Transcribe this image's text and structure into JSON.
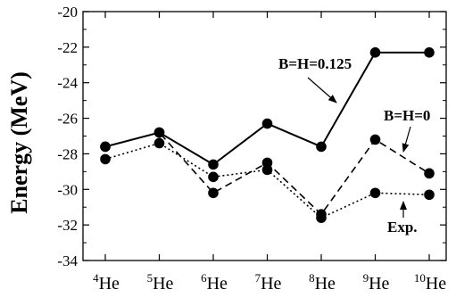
{
  "chart_data": {
    "type": "line",
    "xlabel": "",
    "ylabel": "Energy (MeV)",
    "ylim": [
      -34,
      -20
    ],
    "yticks": [
      "-20",
      "-22",
      "-24",
      "-26",
      "-28",
      "-30",
      "-32",
      "-34"
    ],
    "categories": [
      {
        "mass": "4",
        "symbol": "He"
      },
      {
        "mass": "5",
        "symbol": "He"
      },
      {
        "mass": "6",
        "symbol": "He"
      },
      {
        "mass": "7",
        "symbol": "He"
      },
      {
        "mass": "8",
        "symbol": "He"
      },
      {
        "mass": "9",
        "symbol": "He"
      },
      {
        "mass": "10",
        "symbol": "He"
      }
    ],
    "series": [
      {
        "name": "B=H=0.125",
        "style": "solid",
        "color": "#000000",
        "values": [
          -27.6,
          -26.8,
          -28.6,
          -26.3,
          -27.6,
          -22.3,
          -22.3
        ]
      },
      {
        "name": "B=H=0",
        "style": "dashed",
        "color": "#000000",
        "values": [
          -27.6,
          -26.8,
          -30.2,
          -28.5,
          -31.4,
          -27.2,
          -29.1
        ]
      },
      {
        "name": "Exp.",
        "style": "dotted",
        "color": "#000000",
        "values": [
          -28.3,
          -27.4,
          -29.3,
          -28.9,
          -31.6,
          -30.2,
          -30.3
        ]
      }
    ],
    "annotations": [
      {
        "text": "B=H=0.125",
        "series": 0
      },
      {
        "text": "B=H=0",
        "series": 1
      },
      {
        "text": "Exp.",
        "series": 2
      }
    ],
    "grid": false,
    "legend": "none"
  }
}
